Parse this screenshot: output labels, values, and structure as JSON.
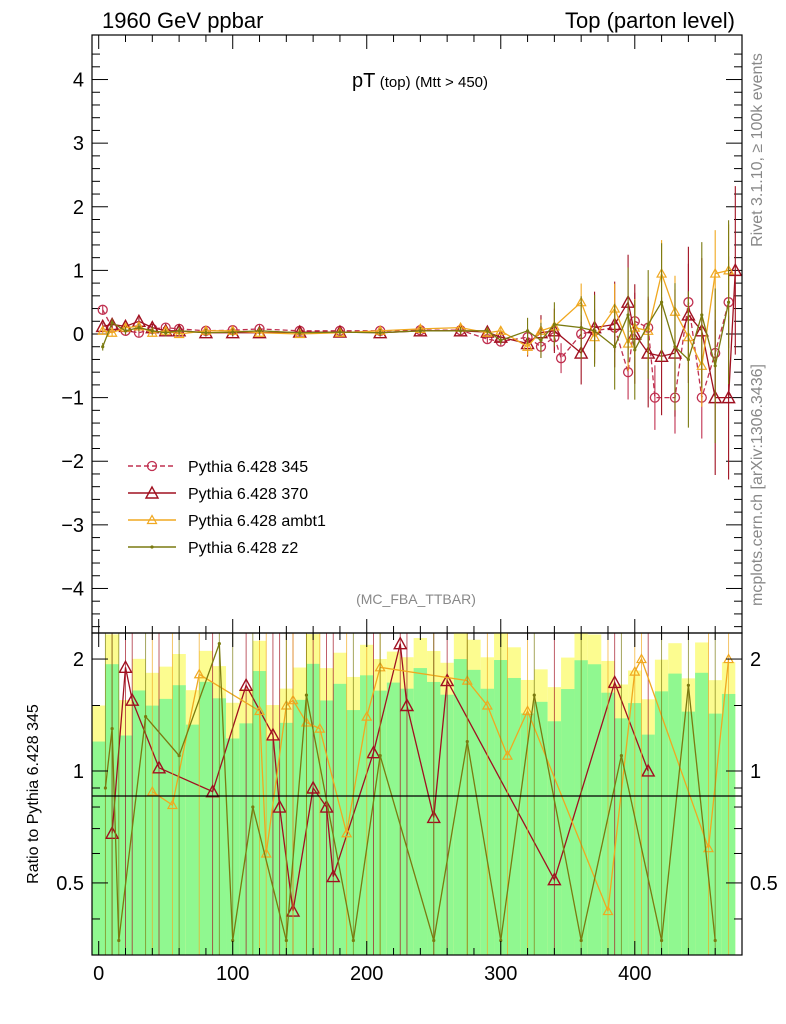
{
  "header": {
    "left": "1960 GeV ppbar",
    "right": "Top (parton level)"
  },
  "side": {
    "rivet": "Rivet 3.1.10, ≥ 100k events",
    "mcplots": "mcplots.cern.ch [arXiv:1306.3436]"
  },
  "chart_data": [
    {
      "type": "line",
      "title_main": "pT",
      "title_sub": "(top)",
      "title_cut": "(Mtt > 450)",
      "watermark": "(MC_FBA_TTBAR)",
      "xlim": [
        -5,
        480
      ],
      "ylim": [
        -4.7,
        4.7
      ],
      "yticks": [
        -4,
        -3,
        -2,
        -1,
        0,
        1,
        2,
        3,
        4
      ],
      "yticklabels": [
        "−4",
        "−3",
        "−2",
        "−1",
        "0",
        "1",
        "2",
        "3",
        "4"
      ],
      "legend_position": "lower-left",
      "series": [
        {
          "name": "Pythia 6.428 345",
          "color": "#c03050",
          "marker": "circle",
          "dashed": true,
          "points": [
            [
              3,
              0.38
            ],
            [
              10,
              0.1
            ],
            [
              20,
              0.05
            ],
            [
              30,
              0.02
            ],
            [
              40,
              0.08
            ],
            [
              50,
              0.1
            ],
            [
              60,
              0.08
            ],
            [
              80,
              0.05
            ],
            [
              100,
              0.06
            ],
            [
              120,
              0.08
            ],
            [
              150,
              0.05
            ],
            [
              180,
              0.05
            ],
            [
              210,
              0.05
            ],
            [
              240,
              0.06
            ],
            [
              270,
              0.06
            ],
            [
              290,
              -0.08
            ],
            [
              300,
              -0.12
            ],
            [
              320,
              -0.05
            ],
            [
              330,
              -0.2
            ],
            [
              340,
              -0.05
            ],
            [
              345,
              -0.38
            ],
            [
              360,
              0.0
            ],
            [
              370,
              0.05
            ],
            [
              385,
              0.1
            ],
            [
              395,
              -0.6
            ],
            [
              400,
              0.2
            ],
            [
              410,
              0.1
            ],
            [
              415,
              -1.0
            ],
            [
              430,
              -1.0
            ],
            [
              440,
              0.5
            ],
            [
              450,
              -1.0
            ],
            [
              460,
              -0.3
            ],
            [
              470,
              0.5
            ]
          ]
        },
        {
          "name": "Pythia 6.428 370",
          "color": "#a01020",
          "marker": "triangle-open",
          "dashed": false,
          "points": [
            [
              3,
              0.12
            ],
            [
              10,
              0.15
            ],
            [
              20,
              0.12
            ],
            [
              30,
              0.2
            ],
            [
              40,
              0.1
            ],
            [
              50,
              0.05
            ],
            [
              60,
              0.05
            ],
            [
              80,
              0.02
            ],
            [
              100,
              0.02
            ],
            [
              120,
              0.02
            ],
            [
              150,
              0.03
            ],
            [
              180,
              0.03
            ],
            [
              210,
              0.02
            ],
            [
              240,
              0.05
            ],
            [
              270,
              0.05
            ],
            [
              290,
              0.03
            ],
            [
              300,
              -0.05
            ],
            [
              320,
              -0.15
            ],
            [
              330,
              0.02
            ],
            [
              340,
              0.05
            ],
            [
              360,
              -0.3
            ],
            [
              370,
              0.1
            ],
            [
              385,
              0.15
            ],
            [
              395,
              0.5
            ],
            [
              400,
              0.0
            ],
            [
              410,
              -0.3
            ],
            [
              420,
              -0.35
            ],
            [
              430,
              -0.3
            ],
            [
              440,
              0.3
            ],
            [
              450,
              0.05
            ],
            [
              460,
              -1.0
            ],
            [
              470,
              -1.0
            ],
            [
              475,
              1.0
            ]
          ]
        },
        {
          "name": "Pythia 6.428 ambt1",
          "color": "#f0a820",
          "marker": "triangle",
          "dashed": false,
          "points": [
            [
              3,
              0.05
            ],
            [
              10,
              0.02
            ],
            [
              20,
              0.1
            ],
            [
              30,
              0.12
            ],
            [
              40,
              0.02
            ],
            [
              50,
              0.05
            ],
            [
              60,
              0.0
            ],
            [
              80,
              0.05
            ],
            [
              100,
              0.05
            ],
            [
              120,
              0.02
            ],
            [
              150,
              0.0
            ],
            [
              180,
              0.02
            ],
            [
              210,
              0.05
            ],
            [
              240,
              0.08
            ],
            [
              270,
              0.1
            ],
            [
              290,
              0.02
            ],
            [
              300,
              0.05
            ],
            [
              320,
              -0.2
            ],
            [
              330,
              0.05
            ],
            [
              340,
              0.12
            ],
            [
              360,
              0.5
            ],
            [
              370,
              -0.05
            ],
            [
              385,
              0.4
            ],
            [
              395,
              -0.15
            ],
            [
              400,
              0.1
            ],
            [
              410,
              0.05
            ],
            [
              420,
              0.95
            ],
            [
              430,
              0.35
            ],
            [
              440,
              -0.05
            ],
            [
              450,
              -0.5
            ],
            [
              460,
              0.95
            ],
            [
              470,
              1.0
            ]
          ]
        },
        {
          "name": "Pythia 6.428 z2",
          "color": "#7a7a10",
          "marker": "dot",
          "dashed": false,
          "points": [
            [
              3,
              -0.2
            ],
            [
              10,
              0.18
            ],
            [
              20,
              0.05
            ],
            [
              30,
              0.1
            ],
            [
              40,
              0.05
            ],
            [
              50,
              0.02
            ],
            [
              60,
              0.05
            ],
            [
              80,
              0.02
            ],
            [
              100,
              0.03
            ],
            [
              120,
              0.05
            ],
            [
              150,
              0.02
            ],
            [
              180,
              0.03
            ],
            [
              210,
              0.02
            ],
            [
              240,
              0.05
            ],
            [
              270,
              0.05
            ],
            [
              290,
              0.05
            ],
            [
              300,
              -0.1
            ],
            [
              320,
              0.05
            ],
            [
              330,
              -0.1
            ],
            [
              340,
              0.15
            ],
            [
              360,
              0.1
            ],
            [
              370,
              0.05
            ],
            [
              385,
              -0.2
            ],
            [
              395,
              0.3
            ],
            [
              400,
              -0.25
            ],
            [
              410,
              0.15
            ],
            [
              420,
              0.5
            ],
            [
              430,
              -0.2
            ],
            [
              440,
              -0.4
            ],
            [
              450,
              0.3
            ],
            [
              460,
              -0.5
            ],
            [
              470,
              0.5
            ]
          ]
        }
      ]
    },
    {
      "type": "line",
      "ylabel": "Ratio to Pythia 6.428 345",
      "xlim": [
        -5,
        480
      ],
      "ylim": [
        0.32,
        2.35
      ],
      "y_scale": "log",
      "yticks": [
        0.5,
        1,
        2
      ],
      "yticklabels": [
        "0.5",
        "1",
        "2"
      ],
      "xticks": [
        0,
        100,
        200,
        300,
        400
      ],
      "xticklabels": [
        "0",
        "100",
        "200",
        "300",
        "400"
      ],
      "reference_line": 1,
      "uncertainty_band_colors": [
        "#90f890",
        "#fcfc90"
      ],
      "series": [
        {
          "name": "Pythia 6.428 370",
          "color": "#a01020",
          "points": [
            [
              10,
              0.68
            ],
            [
              20,
              1.9
            ],
            [
              25,
              1.55
            ],
            [
              45,
              1.02
            ],
            [
              85,
              0.88
            ],
            [
              110,
              1.7
            ],
            [
              130,
              1.25
            ],
            [
              135,
              0.8
            ],
            [
              145,
              0.42
            ],
            [
              160,
              0.9
            ],
            [
              170,
              0.8
            ],
            [
              175,
              0.52
            ],
            [
              205,
              1.12
            ],
            [
              225,
              2.2
            ],
            [
              230,
              1.5
            ],
            [
              250,
              0.75
            ],
            [
              260,
              1.75
            ],
            [
              340,
              0.51
            ],
            [
              385,
              1.73
            ],
            [
              410,
              1.0
            ]
          ]
        },
        {
          "name": "Pythia 6.428 ambt1",
          "color": "#f0a820",
          "points": [
            [
              40,
              0.88
            ],
            [
              55,
              0.81
            ],
            [
              75,
              1.82
            ],
            [
              120,
              1.45
            ],
            [
              125,
              0.6
            ],
            [
              140,
              1.5
            ],
            [
              145,
              1.55
            ],
            [
              155,
              1.35
            ],
            [
              165,
              1.3
            ],
            [
              185,
              0.68
            ],
            [
              200,
              1.4
            ],
            [
              210,
              1.9
            ],
            [
              275,
              1.75
            ],
            [
              290,
              1.5
            ],
            [
              305,
              1.1
            ],
            [
              320,
              1.45
            ],
            [
              380,
              0.42
            ],
            [
              400,
              1.85
            ],
            [
              405,
              2.0
            ],
            [
              455,
              0.62
            ],
            [
              470,
              2.0
            ]
          ]
        },
        {
          "name": "Pythia 6.428 z2",
          "color": "#7a7a10",
          "points": [
            [
              5,
              0.9
            ],
            [
              10,
              1.3
            ],
            [
              15,
              0.35
            ],
            [
              35,
              1.4
            ],
            [
              60,
              1.1
            ],
            [
              90,
              2.2
            ],
            [
              100,
              0.35
            ],
            [
              115,
              0.8
            ],
            [
              140,
              0.35
            ],
            [
              155,
              1.6
            ],
            [
              190,
              0.35
            ],
            [
              210,
              1.1
            ],
            [
              250,
              0.35
            ],
            [
              275,
              1.2
            ],
            [
              300,
              0.35
            ],
            [
              325,
              1.6
            ],
            [
              360,
              0.35
            ],
            [
              390,
              1.1
            ],
            [
              420,
              0.35
            ],
            [
              440,
              1.7
            ],
            [
              460,
              0.35
            ]
          ]
        }
      ]
    }
  ]
}
